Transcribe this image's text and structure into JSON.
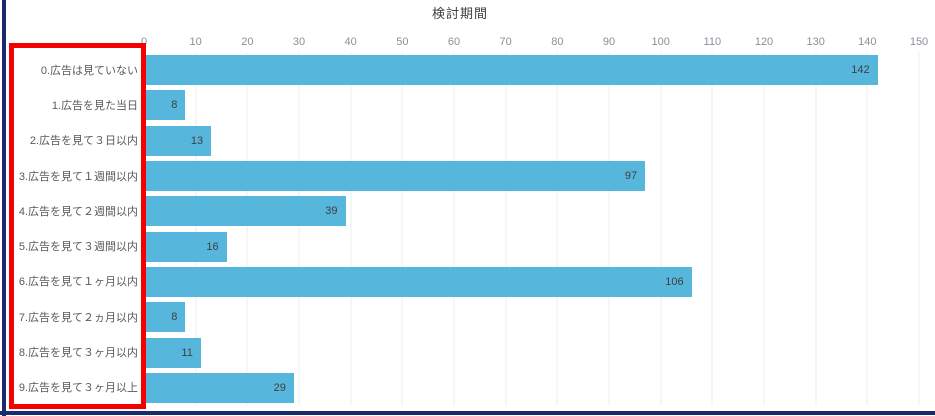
{
  "frame": {
    "left_border_color": "#1b2a6e",
    "bottom_border_color": "#1b2a6e"
  },
  "annotation": {
    "type": "rectangle",
    "color": "#f40000",
    "purpose": "highlights the category axis labels"
  },
  "chart_data": {
    "type": "bar",
    "orientation": "horizontal",
    "title": "検討期間",
    "xlabel": "",
    "ylabel": "",
    "categories": [
      "0.広告は見ていない",
      "1.広告を見た当日",
      "2.広告を見て３日以内",
      "3.広告を見て１週間以内",
      "4.広告を見て２週間以内",
      "5.広告を見て３週間以内",
      "6.広告を見て１ヶ月以内",
      "7.広告を見て２ヵ月以内",
      "8.広告を見て３ヶ月以内",
      "9.広告を見て３ヶ月以上"
    ],
    "values": [
      142,
      8,
      13,
      97,
      39,
      16,
      106,
      8,
      11,
      29
    ],
    "xlim": [
      0,
      150
    ],
    "xticks": [
      0,
      10,
      20,
      30,
      40,
      50,
      60,
      70,
      80,
      90,
      100,
      110,
      120,
      130,
      140,
      150
    ],
    "grid": true,
    "legend": "none",
    "bar_color": "#56b6dc",
    "gridline_color": "#e9edf4",
    "title_color": "#404040",
    "tick_label_color": "#8a8f98",
    "category_label_color": "#595959",
    "value_label_color": "#404040"
  }
}
